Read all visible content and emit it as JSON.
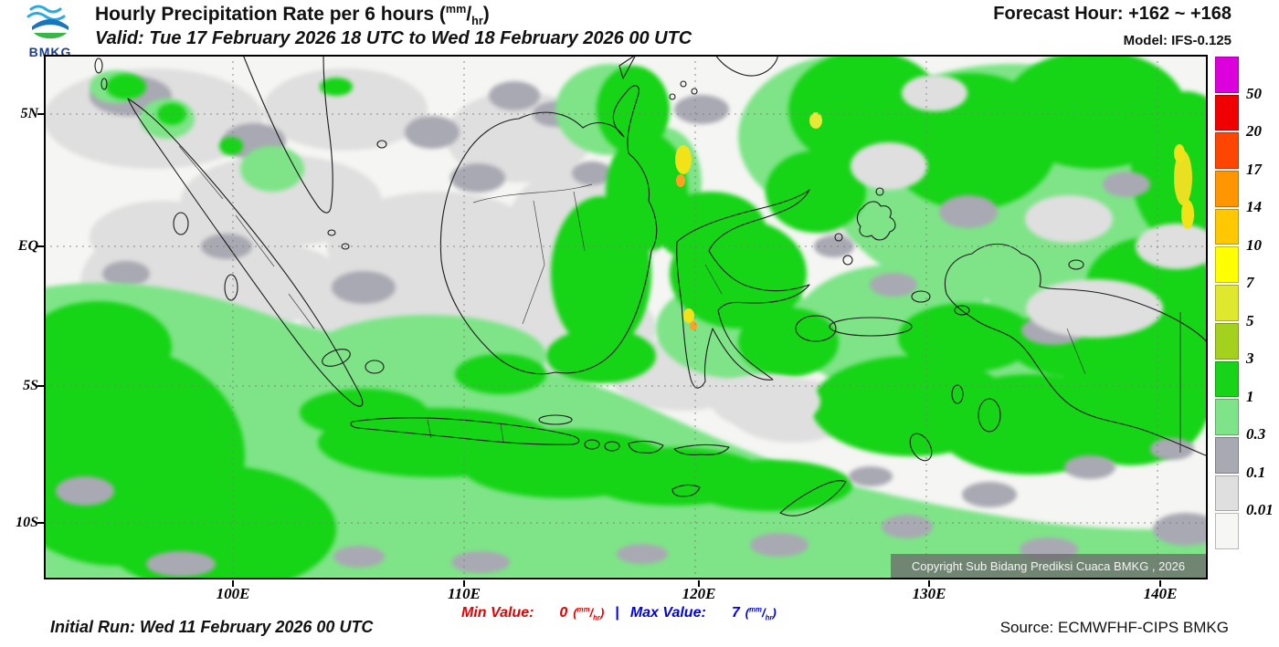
{
  "header": {
    "logo_text": "BMKG",
    "title": {
      "main": "Hourly Precipitation Rate per 6 hours (",
      "unit_num": "mm",
      "unit_slash": "/",
      "unit_den": "hr",
      "close": ")"
    },
    "valid": "Valid: Tue 17 February 2026 18 UTC to Wed 18 February 2026 00 UTC",
    "forecast_hour": "Forecast Hour: +162 ~ +168",
    "model": "Model: IFS-0.125"
  },
  "map": {
    "y_labels": [
      "5N",
      "EQ",
      "5S",
      "10S"
    ],
    "x_labels": [
      "100E",
      "110E",
      "120E",
      "130E",
      "140E"
    ],
    "copyright": "Copyright Sub Bidang Prediksi Cuaca BMKG , 2026"
  },
  "legend": {
    "values": [
      "50",
      "20",
      "17",
      "14",
      "10",
      "7",
      "5",
      "3",
      "1",
      "0.3",
      "0.1",
      "0.01"
    ],
    "segments": [
      "#dc00dc",
      "#f00000",
      "#ff4600",
      "#ff9600",
      "#ffc800",
      "#ffff00",
      "#e0e82e",
      "#a4d01e",
      "#18d418",
      "#7ee487",
      "#a9a9b3",
      "#dfdfdf",
      "#f6f6f4"
    ]
  },
  "stats": {
    "min_label": "Min Value:",
    "min_value": "0",
    "separator": "|",
    "max_label": "Max Value:",
    "max_value": "7",
    "unit_open": "(",
    "unit_num": "mm",
    "unit_slash": "/",
    "unit_den": "hr",
    "unit_close": ")"
  },
  "footer": {
    "initial_run": "Initial Run: Wed 11 February 2026 00 UTC",
    "source": "Source: ECMWFHF-CIPS BMKG"
  },
  "colors": {
    "min_text": "#e60000",
    "max_text": "#0000e6"
  }
}
